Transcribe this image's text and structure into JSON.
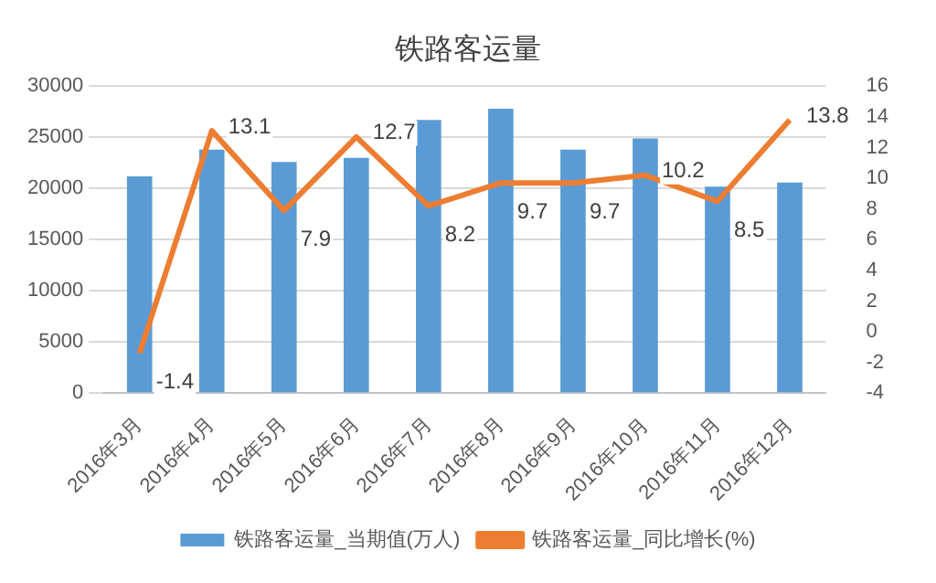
{
  "chart_data": {
    "type": "bar",
    "title": "铁路客运量",
    "categories": [
      "2016年3月",
      "2016年4月",
      "2016年5月",
      "2016年6月",
      "2016年7月",
      "2016年8月",
      "2016年9月",
      "2016年10月",
      "2016年11月",
      "2016年12月"
    ],
    "series": [
      {
        "name": "铁路客运量_当期值(万人)",
        "color": "#5b9bd5",
        "values": [
          21200,
          23800,
          22600,
          23000,
          26700,
          27800,
          23800,
          24900,
          20200,
          20600
        ]
      },
      {
        "name": "铁路客运量_同比增长(%)",
        "type": "line",
        "axis": "y2",
        "color": "#ed7d31",
        "values": [
          -1.4,
          13.1,
          7.9,
          12.7,
          8.2,
          9.7,
          9.7,
          10.2,
          8.5,
          13.8
        ],
        "value_labels": [
          "-1.4",
          "13.1",
          "7.9",
          "12.7",
          "8.2",
          "9.7",
          "9.7",
          "10.2",
          "8.5",
          "13.8"
        ]
      }
    ],
    "ylim": [
      0,
      30000
    ],
    "yticks": [
      0,
      5000,
      10000,
      15000,
      20000,
      25000,
      30000
    ],
    "y2lim": [
      -4,
      16
    ],
    "y2ticks": [
      -4,
      -2,
      0,
      2,
      4,
      6,
      8,
      10,
      12,
      14,
      16
    ],
    "grid": "y",
    "legend": "bottom",
    "marker": "none"
  }
}
